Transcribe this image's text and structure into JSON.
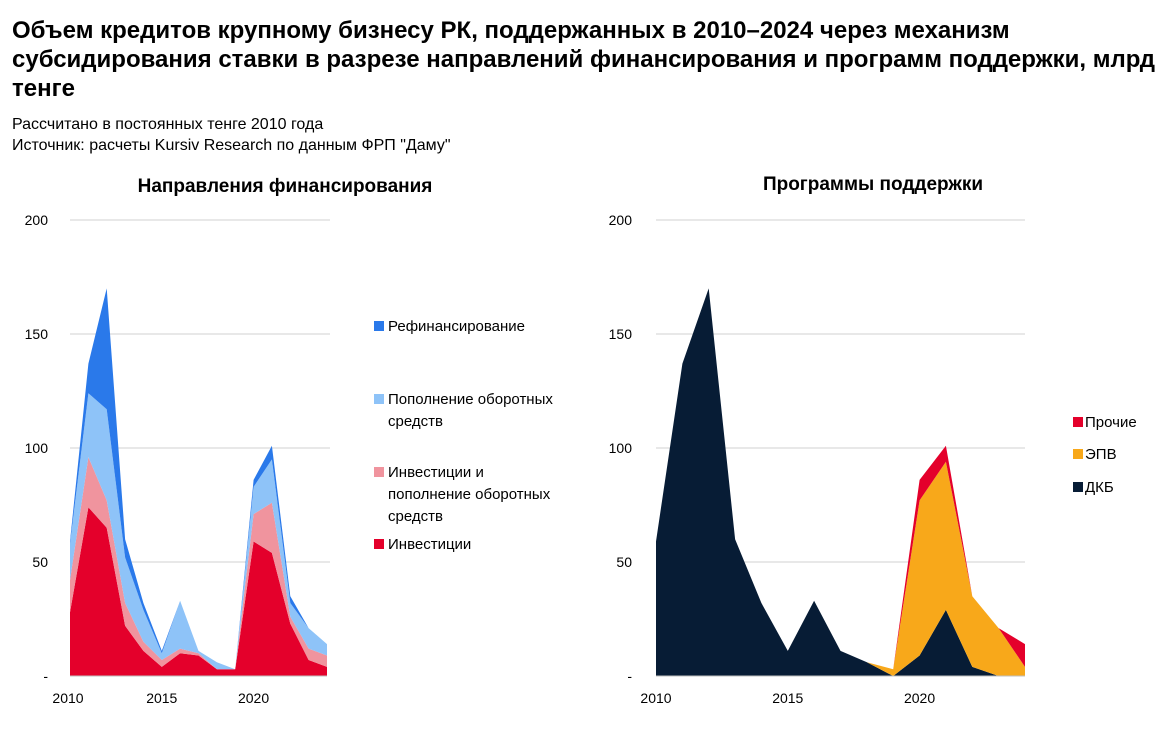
{
  "title": "Объем кредитов крупному бизнесу РК, поддержанных в 2010–2024 через механизм субсидирования ставки в разрезе направлений финансирования и программ поддержки, млрд тенге",
  "subtitle": "Рассчитано в постоянных тенге 2010 года",
  "source": "Источник: расчеты Kursiv Research по данным ФРП \"Даму\"",
  "chart_data": [
    {
      "type": "area",
      "stacked": true,
      "title": "Направления финансирования",
      "x": [
        2010,
        2011,
        2012,
        2013,
        2014,
        2015,
        2016,
        2017,
        2018,
        2019,
        2020,
        2021,
        2022,
        2023,
        2024
      ],
      "x_tick_labels": [
        "2010",
        "2015",
        "2020"
      ],
      "y_tick_labels": [
        "-",
        "50",
        "100",
        "150",
        "200"
      ],
      "ylim": [
        0,
        200
      ],
      "grid": true,
      "legend_position": "right",
      "series": [
        {
          "name": "Инвестиции",
          "color": "#e4002b",
          "values": [
            28,
            74,
            65,
            22,
            11,
            4,
            10,
            9,
            3,
            3,
            59,
            54,
            23,
            7,
            4
          ]
        },
        {
          "name": "Инвестиции и пополнение оборотных средств",
          "color": "#f0949e",
          "values": [
            14,
            22,
            12,
            10,
            4,
            3,
            2,
            1,
            0,
            0,
            12,
            22,
            3,
            5,
            5
          ]
        },
        {
          "name": "Пополнение оборотных средств",
          "color": "#8ec3f8",
          "values": [
            16,
            28,
            40,
            20,
            14,
            3,
            21,
            1,
            3,
            0,
            12,
            19,
            6,
            9,
            5
          ]
        },
        {
          "name": "Рефинансирование",
          "color": "#2a79ea",
          "values": [
            1,
            13,
            53,
            8,
            3,
            1,
            0,
            0,
            0,
            0,
            3,
            6,
            3,
            0,
            0
          ]
        }
      ]
    },
    {
      "type": "area",
      "stacked": true,
      "title": "Программы поддержки",
      "x": [
        2010,
        2011,
        2012,
        2013,
        2014,
        2015,
        2016,
        2017,
        2018,
        2019,
        2020,
        2021,
        2022,
        2023,
        2024
      ],
      "x_tick_labels": [
        "2010",
        "2015",
        "2020"
      ],
      "y_tick_labels": [
        "-",
        "50",
        "100",
        "150",
        "200"
      ],
      "ylim": [
        0,
        200
      ],
      "grid": true,
      "legend_position": "right",
      "series": [
        {
          "name": "ДКБ",
          "color": "#071c35",
          "values": [
            59,
            137,
            170,
            60,
            32,
            11,
            33,
            11,
            6,
            0,
            9,
            29,
            4,
            0,
            0
          ]
        },
        {
          "name": "ЭПВ",
          "color": "#f8a81a",
          "values": [
            0,
            0,
            0,
            0,
            0,
            0,
            0,
            0,
            0,
            3,
            68,
            65,
            31,
            21,
            4
          ]
        },
        {
          "name": "Прочие",
          "color": "#e4002b",
          "values": [
            0,
            0,
            0,
            0,
            0,
            0,
            0,
            0,
            0,
            0,
            9,
            7,
            0,
            0,
            10
          ]
        }
      ]
    }
  ]
}
